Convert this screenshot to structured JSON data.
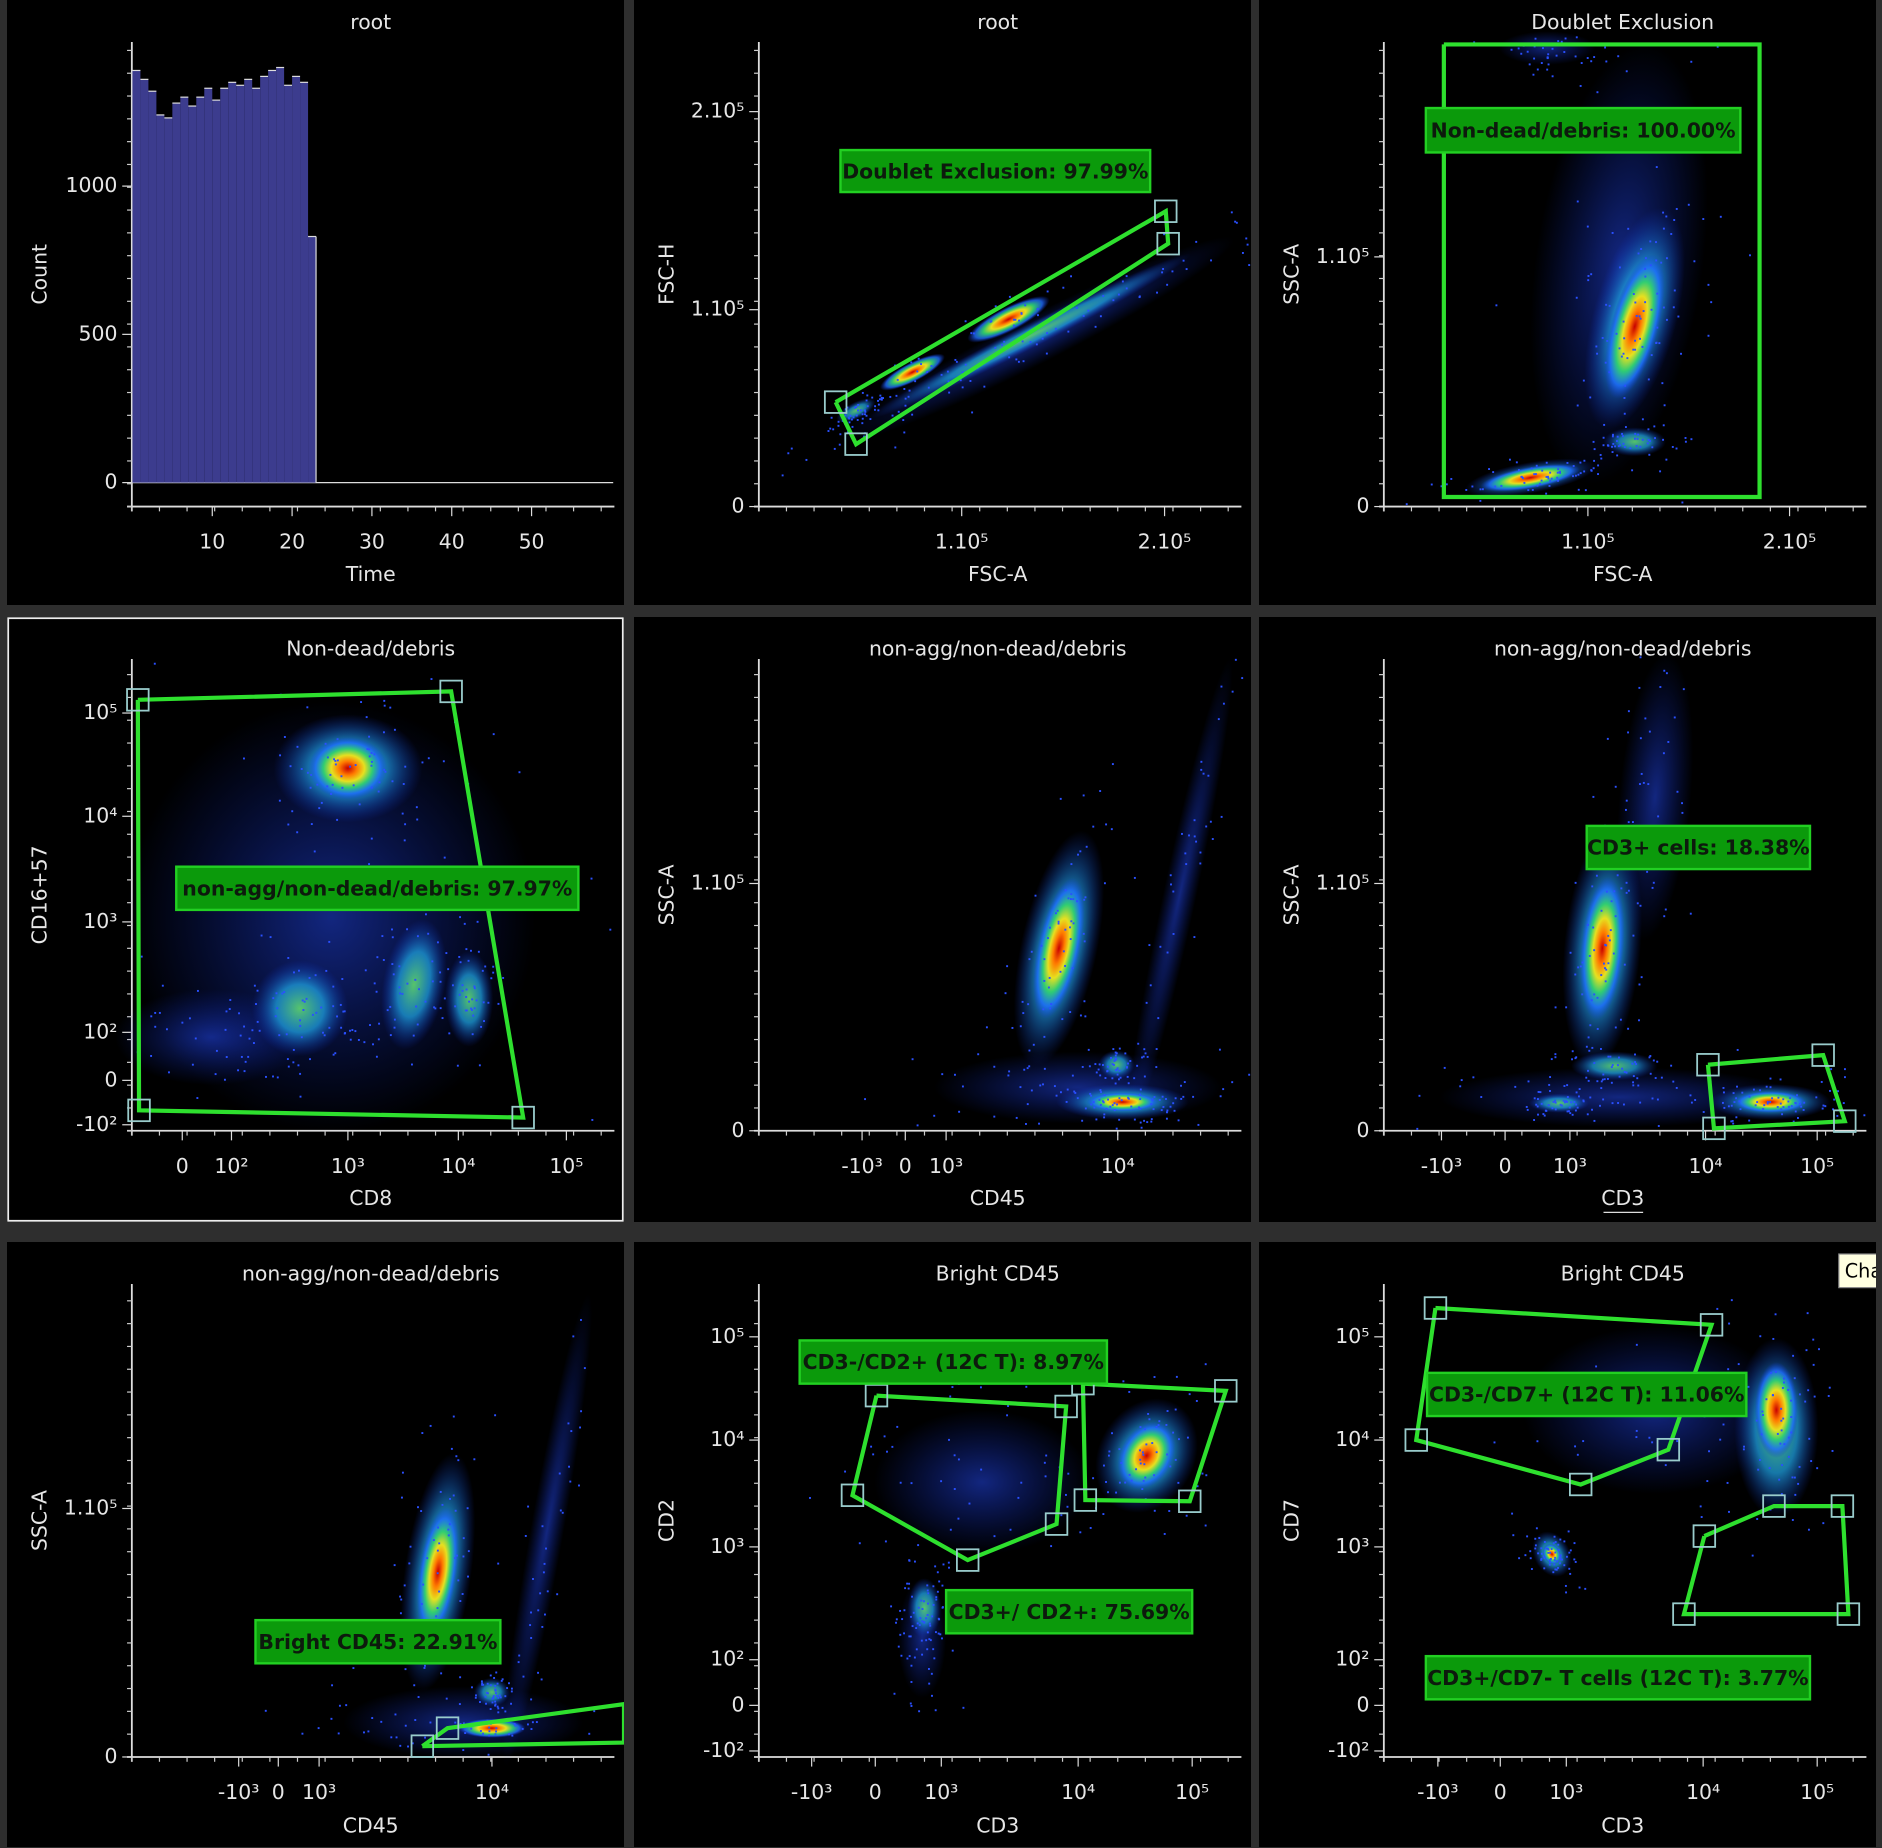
{
  "panels": [
    {
      "title": "root",
      "x_label": "Time",
      "y_label": "Count",
      "histogram": {
        "bins": [
          0,
          1,
          2,
          3,
          4,
          5,
          6,
          7,
          8,
          9,
          10,
          11,
          12,
          13,
          14,
          15,
          16,
          17,
          18,
          19,
          20,
          21,
          22,
          23
        ],
        "counts": [
          1390,
          1360,
          1320,
          1240,
          1230,
          1280,
          1300,
          1270,
          1300,
          1330,
          1290,
          1330,
          1350,
          1340,
          1360,
          1330,
          1370,
          1390,
          1400,
          1340,
          1370,
          1350,
          830
        ],
        "xlim": [
          0,
          60
        ],
        "ylim": [
          -80,
          1490
        ],
        "xticks": [
          10,
          20,
          30,
          40,
          50
        ],
        "yticks": [
          0,
          500,
          1000
        ],
        "color": "#3c3c8e"
      }
    },
    {
      "title": "root",
      "x_label": "FSC-A",
      "y_label": "FSC-H",
      "x_ticks": [
        "1.10⁵",
        "2.10⁵"
      ],
      "y_ticks": [
        "2.10⁵",
        "1.10⁵",
        "0"
      ],
      "gates": [
        {
          "label": "Doublet Exclusion: 97.99%"
        }
      ]
    },
    {
      "title": "Doublet Exclusion",
      "x_label": "FSC-A",
      "y_label": "SSC-A",
      "x_ticks": [
        "1.10⁵",
        "2.10⁵"
      ],
      "y_ticks": [
        "1.10⁵",
        "0"
      ],
      "gates": [
        {
          "label": "Non-dead/debris: 100.00%"
        }
      ]
    },
    {
      "title": "Non-dead/debris",
      "x_label": "CD8",
      "y_label": "CD16+57",
      "x_ticks": [
        "0",
        "10²",
        "10³",
        "10⁴",
        "10⁵"
      ],
      "y_ticks": [
        "10⁵",
        "10⁴",
        "10³",
        "10²",
        "0",
        "-10²"
      ],
      "gates": [
        {
          "label": "non-agg/non-dead/debris: 97.97%"
        }
      ]
    },
    {
      "title": "non-agg/non-dead/debris",
      "x_label": "CD45",
      "y_label": "SSC-A",
      "x_ticks": [
        "-10³",
        "0",
        "10³",
        "10⁴"
      ],
      "y_ticks": [
        "1.10⁵",
        "0"
      ],
      "gates": []
    },
    {
      "title": "non-agg/non-dead/debris",
      "x_label": "CD3",
      "y_label": "SSC-A",
      "x_ticks": [
        "-10³",
        "0",
        "10³",
        "10⁴",
        "10⁵"
      ],
      "y_ticks": [
        "1.10⁵",
        "0"
      ],
      "gates": [
        {
          "label": "CD3+ cells: 18.38%"
        }
      ]
    },
    {
      "title": "non-agg/non-dead/debris",
      "x_label": "CD45",
      "y_label": "SSC-A",
      "x_ticks": [
        "-10³",
        "0",
        "10³",
        "10⁴"
      ],
      "y_ticks": [
        "1.10⁵",
        "0"
      ],
      "gates": [
        {
          "label": "Bright CD45: 22.91%"
        }
      ]
    },
    {
      "title": "Bright CD45",
      "x_label": "CD3",
      "y_label": "CD2",
      "x_ticks": [
        "-10³",
        "0",
        "10³",
        "10⁴",
        "10⁵"
      ],
      "y_ticks": [
        "10⁵",
        "10⁴",
        "10³",
        "10²",
        "0",
        "-10²"
      ],
      "gates": [
        {
          "label": "CD3-/CD2+ (12C T): 8.97%"
        },
        {
          "label": "CD3+/ CD2+: 75.69%"
        }
      ]
    },
    {
      "title": "Bright CD45",
      "x_label": "CD3",
      "y_label": "CD7",
      "x_ticks": [
        "-10³",
        "0",
        "10³",
        "10⁴",
        "10⁵"
      ],
      "y_ticks": [
        "10⁵",
        "10⁴",
        "10³",
        "10²",
        "0",
        "-10²"
      ],
      "gates": [
        {
          "label": "CD3-/CD7+ (12C T): 11.06%"
        },
        {
          "label": "CD3+/CD7- T cells (12C T): 3.77%"
        }
      ]
    }
  ],
  "tooltip": "Cha"
}
